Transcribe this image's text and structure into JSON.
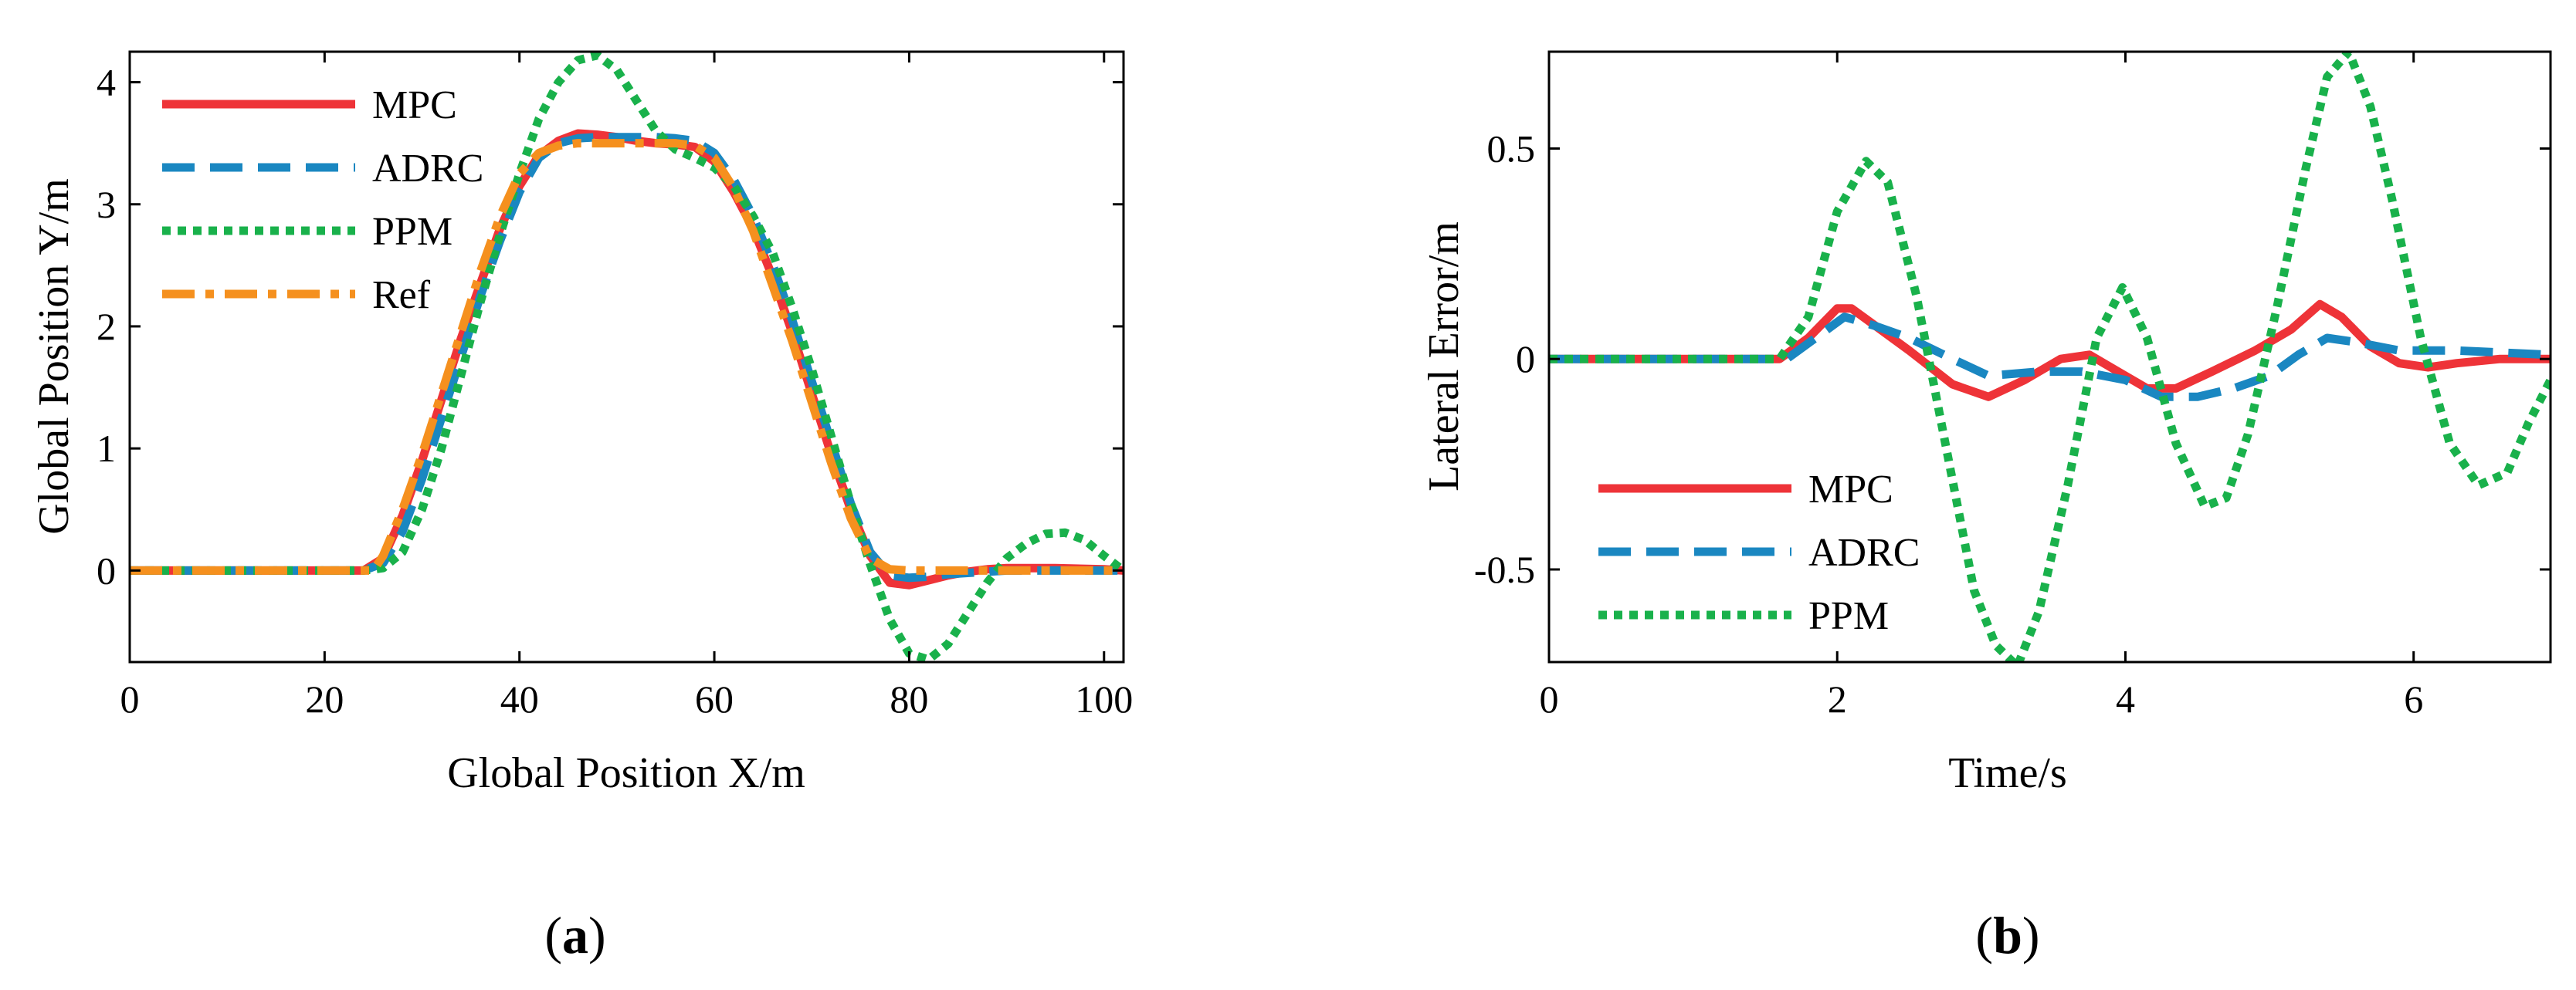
{
  "chart_data": [
    {
      "type": "line",
      "panel_label": "a",
      "xlabel": "Global Position X/m",
      "ylabel": "Global Position Y/m",
      "xlim": [
        0,
        102
      ],
      "ylim": [
        -0.75,
        4.25
      ],
      "xticks": [
        0,
        20,
        40,
        60,
        80,
        100
      ],
      "yticks": [
        0,
        1,
        2,
        3,
        4
      ],
      "legend_position": "top-left",
      "series": [
        {
          "name": "MPC",
          "color": "#ee3338",
          "dash": "solid",
          "x": [
            0,
            24,
            26,
            28,
            30,
            32,
            34,
            36,
            38,
            40,
            42,
            44,
            46,
            48,
            50,
            52,
            54,
            56,
            58,
            60,
            62,
            64,
            66,
            68,
            70,
            72,
            74,
            76,
            78,
            80,
            82,
            84,
            86,
            88,
            90,
            95,
            100,
            102
          ],
          "y": [
            0,
            0,
            0.1,
            0.45,
            0.9,
            1.4,
            1.9,
            2.35,
            2.8,
            3.15,
            3.4,
            3.52,
            3.58,
            3.57,
            3.55,
            3.52,
            3.5,
            3.49,
            3.47,
            3.35,
            3.1,
            2.8,
            2.4,
            1.95,
            1.45,
            0.95,
            0.5,
            0.12,
            -0.1,
            -0.12,
            -0.08,
            -0.04,
            -0.01,
            0.01,
            0.02,
            0.02,
            0.01,
            0.0
          ]
        },
        {
          "name": "ADRC",
          "color": "#1a87c1",
          "dash": "dashed",
          "x": [
            0,
            24,
            26,
            28,
            30,
            32,
            34,
            36,
            38,
            40,
            42,
            44,
            46,
            48,
            50,
            52,
            54,
            56,
            58,
            60,
            62,
            64,
            66,
            68,
            70,
            72,
            74,
            76,
            78,
            80,
            82,
            84,
            86,
            88,
            90,
            95,
            100,
            102
          ],
          "y": [
            0,
            0,
            0.06,
            0.32,
            0.75,
            1.25,
            1.75,
            2.25,
            2.7,
            3.1,
            3.38,
            3.5,
            3.54,
            3.55,
            3.55,
            3.55,
            3.55,
            3.54,
            3.52,
            3.42,
            3.2,
            2.9,
            2.5,
            2.05,
            1.55,
            1.05,
            0.55,
            0.15,
            -0.04,
            -0.06,
            -0.05,
            -0.03,
            -0.02,
            -0.01,
            0.0,
            0.0,
            0.0,
            0.0
          ]
        },
        {
          "name": "PPM",
          "color": "#19b14b",
          "dash": "dotted",
          "x": [
            0,
            24,
            26,
            28,
            30,
            32,
            34,
            36,
            38,
            40,
            42,
            44,
            46,
            48,
            50,
            52,
            54,
            56,
            58,
            60,
            62,
            64,
            66,
            68,
            70,
            72,
            74,
            76,
            78,
            80,
            82,
            84,
            86,
            88,
            90,
            92,
            94,
            96,
            98,
            100,
            102
          ],
          "y": [
            0,
            0,
            0.02,
            0.15,
            0.5,
            1.0,
            1.6,
            2.2,
            2.75,
            3.25,
            3.7,
            4.0,
            4.18,
            4.22,
            4.1,
            3.85,
            3.6,
            3.45,
            3.38,
            3.3,
            3.15,
            2.9,
            2.6,
            2.15,
            1.65,
            1.1,
            0.55,
            0.05,
            -0.4,
            -0.68,
            -0.73,
            -0.6,
            -0.35,
            -0.1,
            0.1,
            0.22,
            0.3,
            0.31,
            0.25,
            0.12,
            0.0
          ]
        },
        {
          "name": "Ref",
          "color": "#f5901e",
          "dash": "dashdot",
          "x": [
            0,
            25,
            26,
            28,
            30,
            32,
            34,
            36,
            38,
            40,
            42,
            44,
            46,
            48,
            50,
            52,
            54,
            56,
            58,
            60,
            62,
            64,
            66,
            68,
            70,
            72,
            74,
            76,
            78,
            80,
            85,
            90,
            95,
            100,
            102
          ],
          "y": [
            0,
            0,
            0.12,
            0.5,
            0.95,
            1.45,
            1.95,
            2.45,
            2.9,
            3.25,
            3.42,
            3.48,
            3.5,
            3.5,
            3.5,
            3.5,
            3.5,
            3.5,
            3.48,
            3.38,
            3.13,
            2.78,
            2.33,
            1.88,
            1.38,
            0.88,
            0.43,
            0.1,
            0.01,
            0.0,
            0.0,
            0.0,
            0.0,
            0.0,
            0.0
          ]
        }
      ]
    },
    {
      "type": "line",
      "panel_label": "b",
      "xlabel": "Time/s",
      "ylabel": "Lateral Error/m",
      "xlim": [
        0,
        6.95
      ],
      "ylim": [
        -0.72,
        0.73
      ],
      "xticks": [
        0,
        2,
        4,
        6
      ],
      "ytick_values": [
        -0.5,
        0,
        0.5
      ],
      "ytick_labels": [
        "-0.5",
        "0",
        "0.5"
      ],
      "legend_position": "bottom-left",
      "series": [
        {
          "name": "MPC",
          "color": "#ee3338",
          "dash": "solid",
          "x": [
            0,
            1.6,
            1.8,
            2.0,
            2.1,
            2.3,
            2.5,
            2.8,
            3.05,
            3.3,
            3.55,
            3.75,
            3.95,
            4.15,
            4.35,
            4.6,
            4.9,
            5.15,
            5.35,
            5.5,
            5.7,
            5.9,
            6.1,
            6.3,
            6.6,
            6.95
          ],
          "y": [
            0,
            0,
            0.05,
            0.12,
            0.12,
            0.07,
            0.02,
            -0.06,
            -0.09,
            -0.05,
            0.0,
            0.01,
            -0.03,
            -0.07,
            -0.07,
            -0.03,
            0.02,
            0.07,
            0.13,
            0.1,
            0.03,
            -0.01,
            -0.02,
            -0.01,
            0.0,
            0.0
          ]
        },
        {
          "name": "ADRC",
          "color": "#1a87c1",
          "dash": "dashed",
          "x": [
            0,
            1.65,
            1.85,
            2.05,
            2.25,
            2.5,
            2.8,
            3.05,
            3.4,
            3.7,
            4.0,
            4.25,
            4.5,
            4.75,
            5.0,
            5.2,
            5.4,
            5.6,
            5.9,
            6.3,
            6.95
          ],
          "y": [
            0,
            0,
            0.05,
            0.1,
            0.08,
            0.05,
            0.0,
            -0.04,
            -0.03,
            -0.03,
            -0.05,
            -0.09,
            -0.09,
            -0.07,
            -0.04,
            0.01,
            0.05,
            0.04,
            0.02,
            0.02,
            0.01
          ]
        },
        {
          "name": "PPM",
          "color": "#19b14b",
          "dash": "dotted",
          "x": [
            0,
            1.6,
            1.8,
            2.0,
            2.2,
            2.35,
            2.55,
            2.75,
            2.95,
            3.1,
            3.25,
            3.4,
            3.6,
            3.8,
            3.98,
            4.15,
            4.35,
            4.55,
            4.7,
            4.85,
            5.05,
            5.25,
            5.4,
            5.55,
            5.7,
            5.85,
            6.05,
            6.25,
            6.45,
            6.65,
            6.8,
            6.95
          ],
          "y": [
            0,
            0,
            0.1,
            0.35,
            0.47,
            0.42,
            0.15,
            -0.2,
            -0.55,
            -0.68,
            -0.73,
            -0.6,
            -0.3,
            0.05,
            0.17,
            0.05,
            -0.2,
            -0.35,
            -0.33,
            -0.18,
            0.12,
            0.45,
            0.67,
            0.73,
            0.6,
            0.38,
            0.05,
            -0.2,
            -0.3,
            -0.27,
            -0.15,
            -0.05
          ]
        }
      ]
    }
  ]
}
